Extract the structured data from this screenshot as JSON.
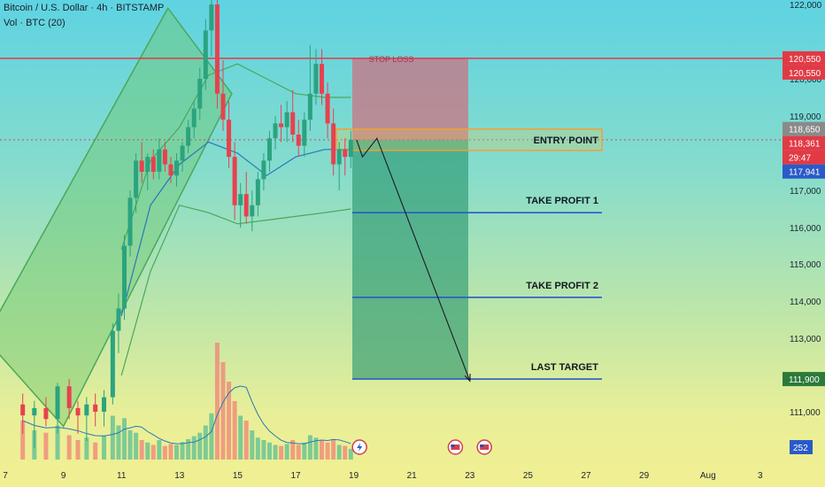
{
  "header": {
    "symbol": "Bitcoin / U.S. Dollar · 4h · BITSTAMP",
    "volume": "Vol · BTC (20)"
  },
  "colors": {
    "up": "#2ba37f",
    "down": "#e8414f",
    "stop": "#e23a45",
    "target": "#2a5ac8",
    "entry_box": "#f0a03a",
    "channel": "#5bbf6a"
  },
  "chart_data": {
    "type": "candlestick",
    "title": "",
    "y_ticks": [
      111000,
      112000,
      113000,
      114000,
      115000,
      116000,
      117000,
      118000,
      119000,
      120000,
      122000
    ],
    "x_ticks": [
      "7",
      "9",
      "11",
      "13",
      "15",
      "17",
      "19",
      "21",
      "23",
      "25",
      "27",
      "29",
      "Aug",
      "3"
    ],
    "price_tags": [
      {
        "label": "120,550",
        "value": 120550,
        "color": "#e23a45"
      },
      {
        "label": "120,550",
        "value": 120550,
        "color": "#e23a45"
      },
      {
        "label": "118,650",
        "value": 118650,
        "color": "#8a8a8a"
      },
      {
        "label": "118,361",
        "value": 118361,
        "color": "#e23a45"
      },
      {
        "label": "29:47",
        "value": 118150,
        "color": "#e23a45"
      },
      {
        "label": "117,941",
        "value": 117941,
        "color": "#2a5ac8"
      },
      {
        "label": "111,900",
        "value": 111900,
        "color": "#2b7a3a"
      }
    ],
    "volume_tag": "252",
    "levels": [
      {
        "name": "STOP LOSS",
        "value": 120550
      },
      {
        "name": "ENTRY POINT",
        "value": 118361
      },
      {
        "name": "TAKE PROFIT 1",
        "value": 116400
      },
      {
        "name": "TAKE PROFIT 2",
        "value": 114100
      },
      {
        "name": "LAST TARGET",
        "value": 111900
      }
    ],
    "candles": [
      {
        "x": 7.6,
        "o": 111200,
        "h": 111500,
        "l": 110700,
        "c": 110950
      },
      {
        "x": 8.0,
        "o": 110950,
        "h": 111300,
        "l": 110500,
        "c": 111100
      },
      {
        "x": 8.4,
        "o": 111100,
        "h": 111400,
        "l": 110800,
        "c": 110900
      },
      {
        "x": 8.8,
        "o": 110900,
        "h": 111800,
        "l": 110700,
        "c": 111700
      },
      {
        "x": 9.2,
        "o": 111700,
        "h": 111900,
        "l": 110900,
        "c": 111100
      },
      {
        "x": 9.5,
        "o": 111100,
        "h": 111300,
        "l": 110700,
        "c": 110950
      },
      {
        "x": 9.8,
        "o": 110950,
        "h": 111400,
        "l": 110600,
        "c": 111200
      },
      {
        "x": 10.1,
        "o": 111200,
        "h": 111500,
        "l": 110800,
        "c": 111000
      },
      {
        "x": 10.4,
        "o": 111000,
        "h": 111600,
        "l": 110800,
        "c": 111400
      },
      {
        "x": 10.7,
        "o": 111400,
        "h": 113400,
        "l": 111200,
        "c": 113200
      },
      {
        "x": 10.9,
        "o": 113200,
        "h": 114200,
        "l": 112600,
        "c": 113800
      },
      {
        "x": 11.1,
        "o": 113800,
        "h": 115800,
        "l": 113500,
        "c": 115500
      },
      {
        "x": 11.3,
        "o": 115500,
        "h": 117000,
        "l": 115200,
        "c": 116800
      },
      {
        "x": 11.5,
        "o": 116800,
        "h": 118000,
        "l": 116400,
        "c": 117800
      },
      {
        "x": 11.7,
        "o": 117800,
        "h": 118300,
        "l": 117200,
        "c": 117500
      },
      {
        "x": 11.9,
        "o": 117500,
        "h": 118000,
        "l": 117000,
        "c": 117900
      },
      {
        "x": 12.1,
        "o": 117900,
        "h": 118100,
        "l": 117300,
        "c": 117500
      },
      {
        "x": 12.3,
        "o": 117500,
        "h": 118400,
        "l": 117300,
        "c": 118100
      },
      {
        "x": 12.5,
        "o": 118100,
        "h": 118300,
        "l": 117500,
        "c": 117700
      },
      {
        "x": 12.7,
        "o": 117700,
        "h": 117900,
        "l": 117200,
        "c": 117400
      },
      {
        "x": 12.9,
        "o": 117400,
        "h": 118000,
        "l": 117100,
        "c": 117800
      },
      {
        "x": 13.1,
        "o": 117800,
        "h": 118300,
        "l": 117500,
        "c": 118200
      },
      {
        "x": 13.3,
        "o": 118200,
        "h": 118900,
        "l": 118000,
        "c": 118700
      },
      {
        "x": 13.5,
        "o": 118700,
        "h": 119400,
        "l": 118400,
        "c": 119200
      },
      {
        "x": 13.7,
        "o": 119200,
        "h": 120300,
        "l": 118900,
        "c": 120000
      },
      {
        "x": 13.9,
        "o": 120000,
        "h": 121600,
        "l": 119700,
        "c": 121300
      },
      {
        "x": 14.1,
        "o": 121300,
        "h": 122600,
        "l": 120600,
        "c": 122000
      },
      {
        "x": 14.3,
        "o": 122000,
        "h": 122600,
        "l": 119200,
        "c": 119600
      },
      {
        "x": 14.5,
        "o": 119600,
        "h": 120500,
        "l": 118600,
        "c": 118900
      },
      {
        "x": 14.7,
        "o": 118900,
        "h": 119400,
        "l": 117600,
        "c": 117900
      },
      {
        "x": 14.9,
        "o": 117900,
        "h": 118300,
        "l": 116200,
        "c": 116600
      },
      {
        "x": 15.1,
        "o": 116600,
        "h": 117200,
        "l": 116000,
        "c": 116900
      },
      {
        "x": 15.3,
        "o": 116900,
        "h": 117500,
        "l": 116100,
        "c": 116300
      },
      {
        "x": 15.5,
        "o": 116300,
        "h": 117000,
        "l": 115900,
        "c": 116600
      },
      {
        "x": 15.7,
        "o": 116600,
        "h": 117500,
        "l": 116300,
        "c": 117300
      },
      {
        "x": 15.9,
        "o": 117300,
        "h": 118000,
        "l": 117000,
        "c": 117800
      },
      {
        "x": 16.1,
        "o": 117800,
        "h": 118600,
        "l": 117500,
        "c": 118400
      },
      {
        "x": 16.3,
        "o": 118400,
        "h": 119000,
        "l": 118100,
        "c": 118800
      },
      {
        "x": 16.5,
        "o": 118800,
        "h": 119300,
        "l": 118300,
        "c": 118700
      },
      {
        "x": 16.7,
        "o": 118700,
        "h": 119400,
        "l": 118300,
        "c": 119100
      },
      {
        "x": 16.9,
        "o": 119100,
        "h": 119700,
        "l": 118300,
        "c": 118500
      },
      {
        "x": 17.1,
        "o": 118500,
        "h": 118900,
        "l": 117900,
        "c": 118200
      },
      {
        "x": 17.3,
        "o": 118200,
        "h": 119100,
        "l": 117900,
        "c": 118900
      },
      {
        "x": 17.5,
        "o": 118900,
        "h": 120900,
        "l": 118600,
        "c": 119600
      },
      {
        "x": 17.7,
        "o": 119600,
        "h": 120800,
        "l": 119300,
        "c": 120400
      },
      {
        "x": 17.9,
        "o": 120400,
        "h": 120800,
        "l": 119300,
        "c": 119600
      },
      {
        "x": 18.1,
        "o": 119600,
        "h": 119900,
        "l": 118400,
        "c": 118800
      },
      {
        "x": 18.3,
        "o": 118800,
        "h": 119200,
        "l": 117400,
        "c": 117700
      },
      {
        "x": 18.5,
        "o": 117700,
        "h": 118300,
        "l": 117000,
        "c": 118100
      },
      {
        "x": 18.7,
        "o": 118100,
        "h": 118400,
        "l": 117400,
        "c": 117900
      },
      {
        "x": 18.9,
        "o": 117900,
        "h": 118600,
        "l": 117600,
        "c": 118361
      }
    ],
    "channel_polygon": [
      [
        6.3,
        113000
      ],
      [
        9.0,
        110800
      ],
      [
        14.8,
        119600
      ],
      [
        12.6,
        121900
      ]
    ],
    "bollinger_upper": [
      [
        11.0,
        115400
      ],
      [
        12.0,
        117800
      ],
      [
        13.0,
        118700
      ],
      [
        14.0,
        120100
      ],
      [
        15.0,
        120400
      ],
      [
        16.0,
        120000
      ],
      [
        17.0,
        119600
      ],
      [
        18.0,
        119500
      ],
      [
        18.9,
        119500
      ]
    ],
    "bollinger_mid": [
      [
        11.0,
        113600
      ],
      [
        12.0,
        116600
      ],
      [
        13.0,
        117700
      ],
      [
        14.0,
        118300
      ],
      [
        15.0,
        118000
      ],
      [
        16.0,
        117400
      ],
      [
        17.0,
        117900
      ],
      [
        18.0,
        118100
      ],
      [
        18.9,
        118100
      ]
    ],
    "bollinger_lower": [
      [
        11.0,
        112000
      ],
      [
        12.0,
        114800
      ],
      [
        13.0,
        116600
      ],
      [
        14.0,
        116400
      ],
      [
        15.0,
        116100
      ],
      [
        16.0,
        116200
      ],
      [
        17.0,
        116300
      ],
      [
        18.0,
        116400
      ],
      [
        18.9,
        116500
      ]
    ],
    "forecast_path": [
      [
        19.1,
        118361
      ],
      [
        19.3,
        117900
      ],
      [
        19.8,
        118400
      ],
      [
        23.0,
        111850
      ]
    ],
    "volume": [
      {
        "x": 7.6,
        "v": 80,
        "up": false
      },
      {
        "x": 8.0,
        "v": 60,
        "up": true
      },
      {
        "x": 8.4,
        "v": 55,
        "up": false
      },
      {
        "x": 8.8,
        "v": 70,
        "up": true
      },
      {
        "x": 9.2,
        "v": 50,
        "up": false
      },
      {
        "x": 9.5,
        "v": 40,
        "up": false
      },
      {
        "x": 9.8,
        "v": 45,
        "up": true
      },
      {
        "x": 10.1,
        "v": 35,
        "up": false
      },
      {
        "x": 10.4,
        "v": 50,
        "up": true
      },
      {
        "x": 10.7,
        "v": 90,
        "up": true
      },
      {
        "x": 10.9,
        "v": 70,
        "up": true
      },
      {
        "x": 11.1,
        "v": 85,
        "up": true
      },
      {
        "x": 11.3,
        "v": 60,
        "up": true
      },
      {
        "x": 11.5,
        "v": 55,
        "up": true
      },
      {
        "x": 11.7,
        "v": 40,
        "up": false
      },
      {
        "x": 11.9,
        "v": 35,
        "up": true
      },
      {
        "x": 12.1,
        "v": 30,
        "up": false
      },
      {
        "x": 12.3,
        "v": 40,
        "up": true
      },
      {
        "x": 12.5,
        "v": 28,
        "up": false
      },
      {
        "x": 12.7,
        "v": 32,
        "up": false
      },
      {
        "x": 12.9,
        "v": 30,
        "up": true
      },
      {
        "x": 13.1,
        "v": 36,
        "up": true
      },
      {
        "x": 13.3,
        "v": 42,
        "up": true
      },
      {
        "x": 13.5,
        "v": 48,
        "up": true
      },
      {
        "x": 13.7,
        "v": 55,
        "up": true
      },
      {
        "x": 13.9,
        "v": 70,
        "up": true
      },
      {
        "x": 14.1,
        "v": 95,
        "up": true
      },
      {
        "x": 14.3,
        "v": 240,
        "up": false
      },
      {
        "x": 14.5,
        "v": 200,
        "up": false
      },
      {
        "x": 14.7,
        "v": 160,
        "up": false
      },
      {
        "x": 14.9,
        "v": 120,
        "up": false
      },
      {
        "x": 15.1,
        "v": 90,
        "up": true
      },
      {
        "x": 15.3,
        "v": 80,
        "up": false
      },
      {
        "x": 15.5,
        "v": 60,
        "up": true
      },
      {
        "x": 15.7,
        "v": 45,
        "up": true
      },
      {
        "x": 15.9,
        "v": 40,
        "up": true
      },
      {
        "x": 16.1,
        "v": 35,
        "up": true
      },
      {
        "x": 16.3,
        "v": 30,
        "up": true
      },
      {
        "x": 16.5,
        "v": 28,
        "up": false
      },
      {
        "x": 16.7,
        "v": 32,
        "up": true
      },
      {
        "x": 16.9,
        "v": 40,
        "up": false
      },
      {
        "x": 17.1,
        "v": 30,
        "up": false
      },
      {
        "x": 17.3,
        "v": 35,
        "up": true
      },
      {
        "x": 17.5,
        "v": 50,
        "up": true
      },
      {
        "x": 17.7,
        "v": 45,
        "up": true
      },
      {
        "x": 17.9,
        "v": 40,
        "up": false
      },
      {
        "x": 18.1,
        "v": 35,
        "up": false
      },
      {
        "x": 18.3,
        "v": 42,
        "up": false
      },
      {
        "x": 18.5,
        "v": 30,
        "up": true
      },
      {
        "x": 18.7,
        "v": 28,
        "up": false
      },
      {
        "x": 18.9,
        "v": 22,
        "up": true
      }
    ],
    "event_icons": [
      {
        "x": 19.2,
        "name": "lightning-icon"
      },
      {
        "x": 22.5,
        "name": "us-flag-icon"
      },
      {
        "x": 23.5,
        "name": "us-flag-icon"
      }
    ]
  }
}
